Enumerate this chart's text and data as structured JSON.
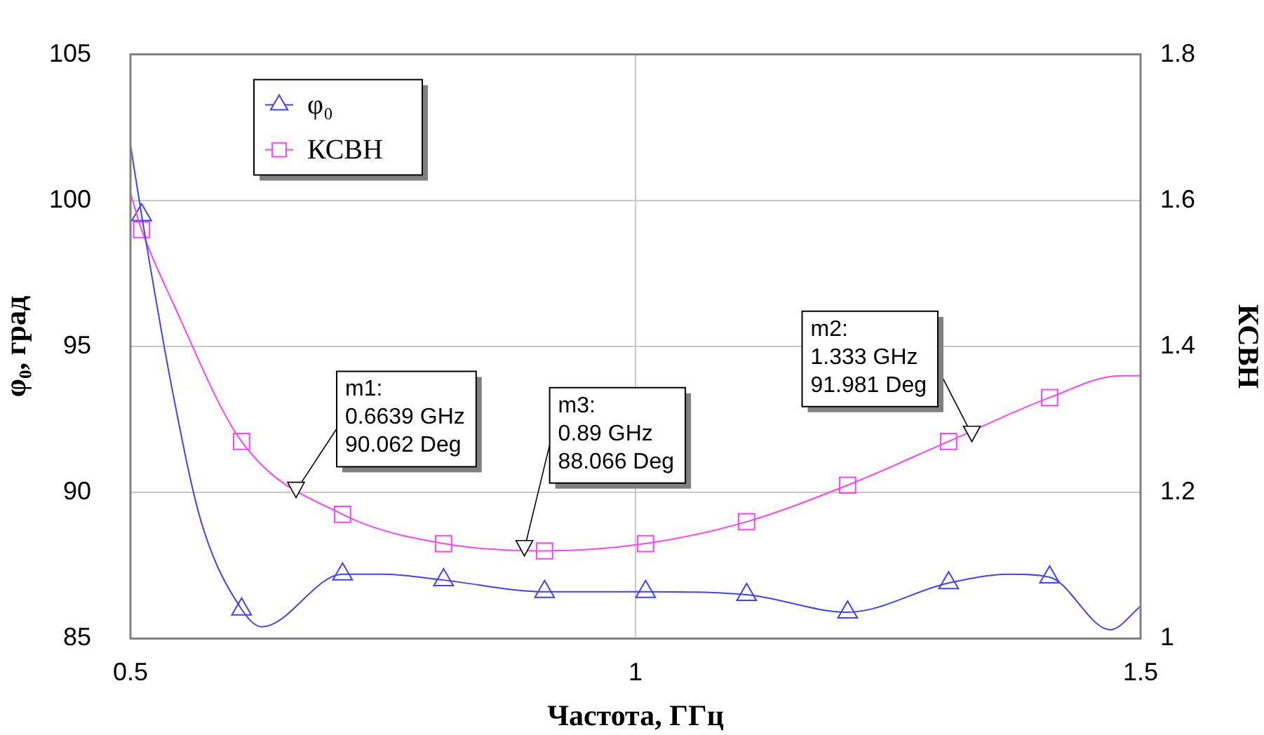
{
  "chart_data": {
    "type": "line",
    "xlabel": "Частота, ГГц",
    "ylabel": "φ₀, град",
    "y2label": "КСВН",
    "xlim": [
      0.5,
      1.5
    ],
    "xticks": [
      0.5,
      1,
      1.5
    ],
    "ylim": [
      85,
      105
    ],
    "yticks": [
      85,
      90,
      95,
      100,
      105
    ],
    "y2lim": [
      1,
      1.8
    ],
    "y2ticks": [
      1,
      1.2,
      1.4,
      1.6,
      1.8
    ],
    "grid": true,
    "legend": "top left",
    "line_style": "solid",
    "series": [
      {
        "type": "line",
        "color": "#4040ff",
        "marker": "none",
        "x": [
          0.5,
          0.511,
          0.542,
          0.57,
          0.61,
          0.63,
          0.71,
          0.75,
          0.81,
          0.91,
          1.01,
          1.11,
          1.21,
          1.31,
          1.37,
          1.41,
          1.47,
          1.5
        ],
        "values": [
          101.9,
          99.5,
          93.4,
          89.0,
          86.0,
          85.4,
          87.2,
          87.2,
          87.0,
          86.6,
          86.6,
          86.5,
          85.9,
          86.9,
          87.2,
          87.1,
          85.3,
          86.1
        ]
      },
      {
        "type": "line",
        "color": "#ff40ff",
        "marker": "none",
        "axis": "y2",
        "x": [
          0.5,
          0.511,
          0.542,
          0.61,
          0.71,
          0.81,
          0.91,
          1.01,
          1.11,
          1.21,
          1.31,
          1.41,
          1.48,
          1.5
        ],
        "values": [
          1.61,
          1.56,
          1.46,
          1.27,
          1.17,
          1.13,
          1.12,
          1.13,
          1.16,
          1.21,
          1.27,
          1.33,
          1.36,
          1.36
        ]
      },
      {
        "type": "scatter",
        "name": "φ₀",
        "color": "#4040ff",
        "marker": "triangle",
        "x": [
          0.511,
          0.61,
          0.71,
          0.81,
          0.91,
          1.01,
          1.11,
          1.21,
          1.31,
          1.41
        ],
        "values": [
          99.5,
          86.0,
          87.2,
          87.0,
          86.6,
          86.6,
          86.5,
          85.9,
          86.9,
          87.1
        ]
      },
      {
        "type": "scatter",
        "name": "КСВН",
        "color": "#ff40ff",
        "marker": "square",
        "axis": "y2",
        "x": [
          0.511,
          0.61,
          0.71,
          0.81,
          0.91,
          1.01,
          1.11,
          1.21,
          1.31,
          1.41
        ],
        "values": [
          1.56,
          1.27,
          1.17,
          1.13,
          1.12,
          1.13,
          1.16,
          1.21,
          1.27,
          1.33
        ]
      }
    ],
    "annotations": [
      {
        "text": "m1:\n0.6639 GHz\n90.062 Deg",
        "x": 0.6639,
        "y": 90.062
      },
      {
        "text": "m2:\n1.333 GHz\n91.981 Deg",
        "x": 1.333,
        "y": 91.981
      },
      {
        "text": "m3:\n0.89 GHz\n88.066 Deg",
        "x": 0.89,
        "y": 88.066
      }
    ]
  }
}
